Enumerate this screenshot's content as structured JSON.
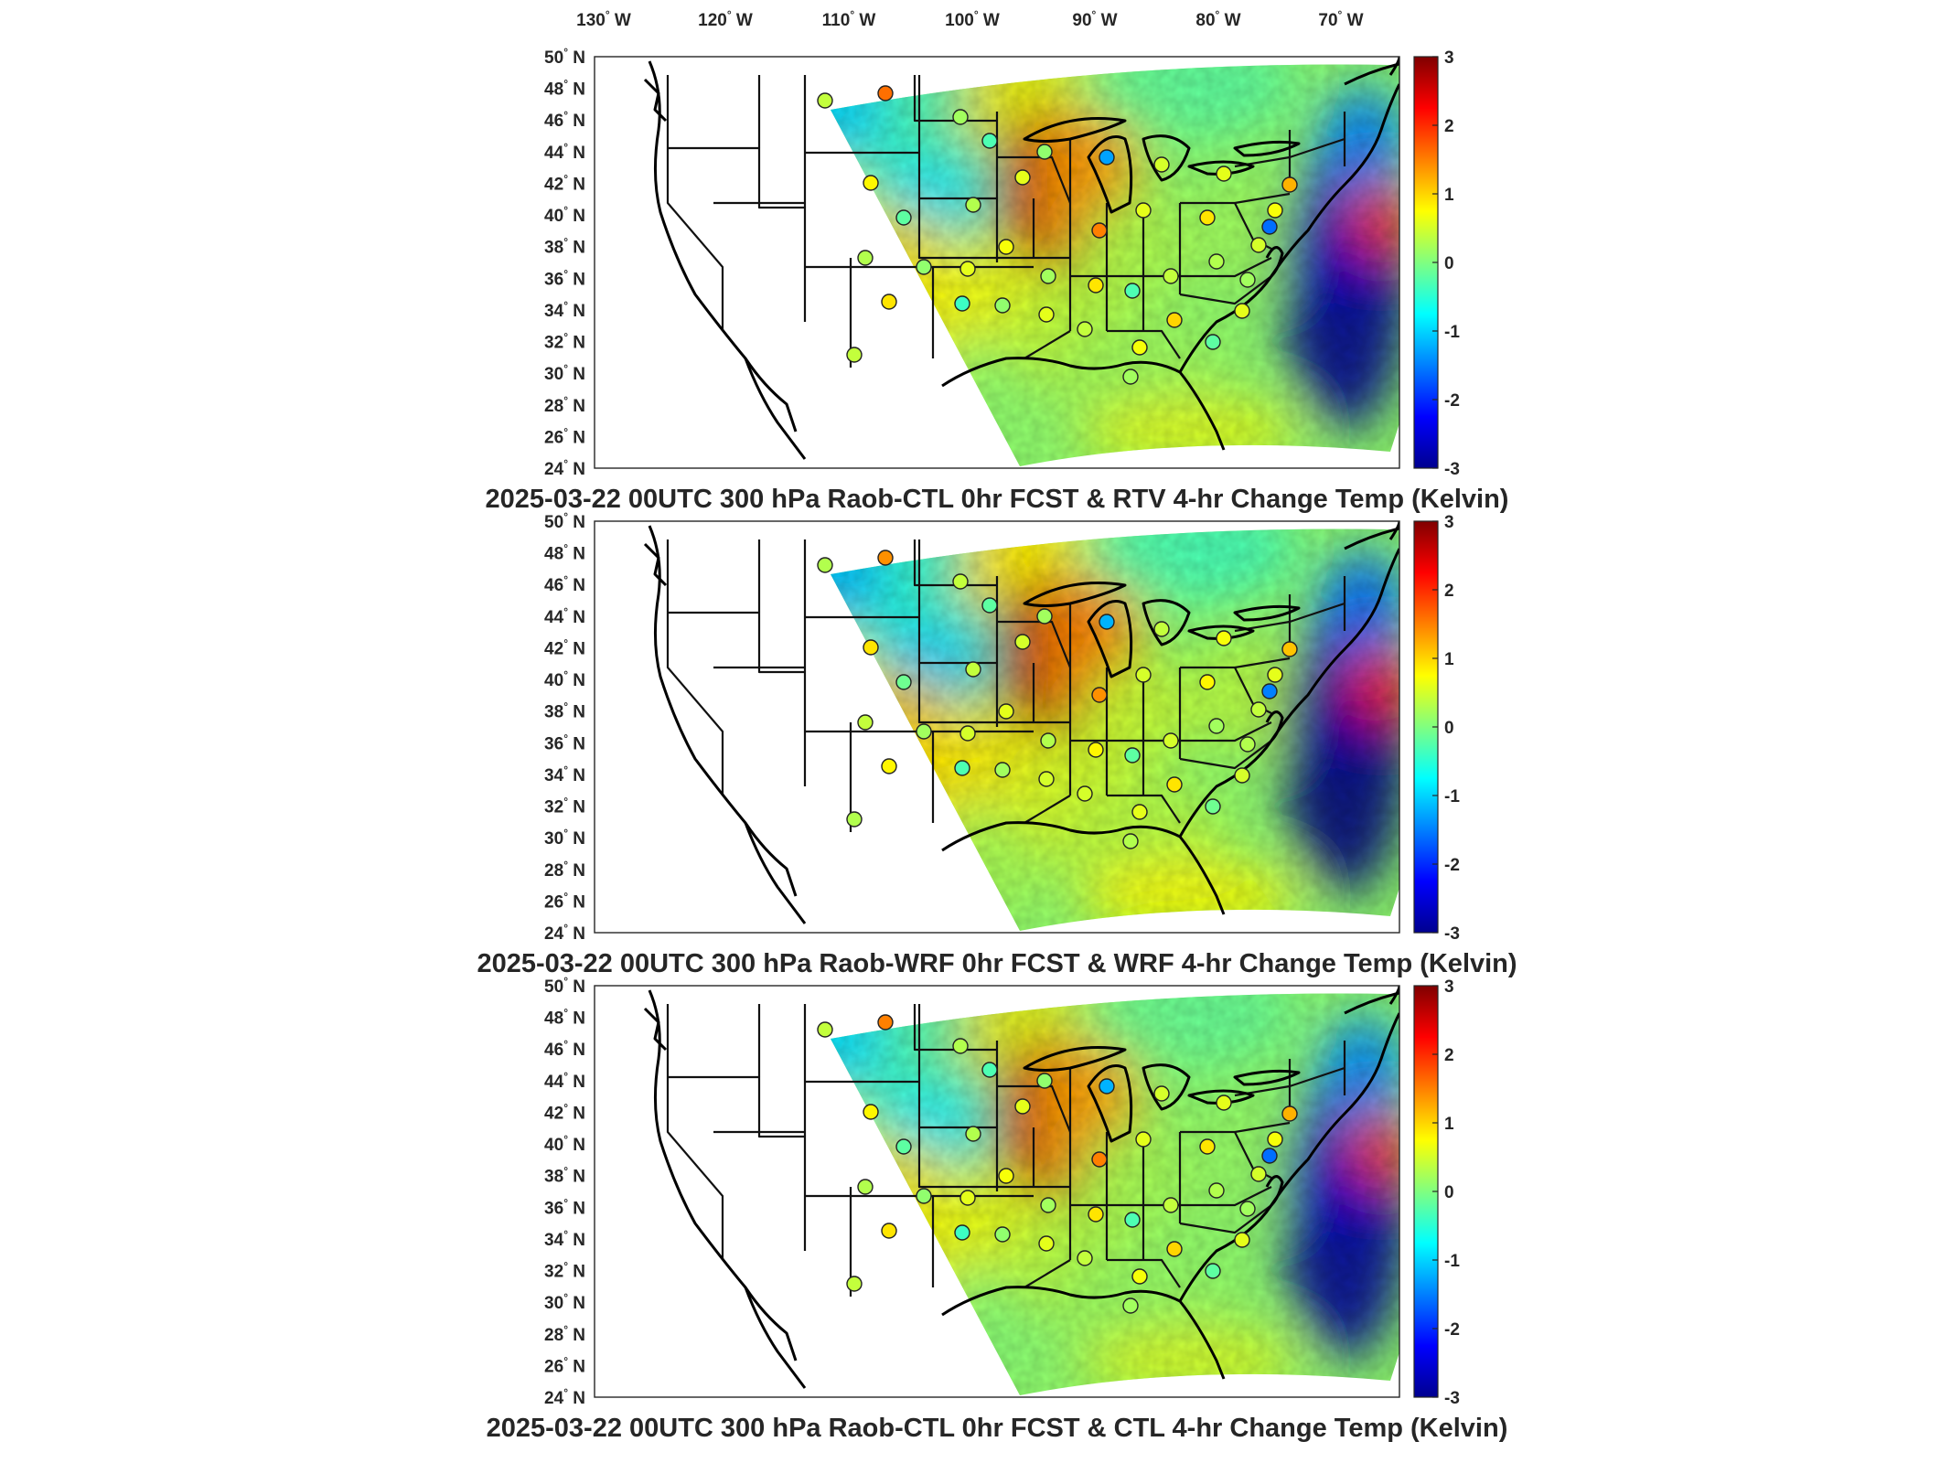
{
  "colormap": "jet",
  "colors": {
    "low": "#00008f",
    "mid": "#80ff80",
    "high": "#800000"
  },
  "lon_labels": [
    "130",
    "120",
    "110",
    "100",
    "90",
    "80",
    "70"
  ],
  "lon_suffix": "W",
  "lat_labels": [
    "50",
    "48",
    "46",
    "44",
    "42",
    "40",
    "38",
    "36",
    "34",
    "32",
    "30",
    "28",
    "26",
    "24"
  ],
  "lat_suffix": "N",
  "panels": [
    {
      "title": "2025-03-22 00UTC 300 hPa Raob-CTL 0hr FCST & RTV 4-hr Change Temp (Kelvin)",
      "colorbar": {
        "min": -3,
        "max": 3,
        "ticks": [
          "3",
          "2",
          "1",
          "0",
          "-1",
          "-2",
          "-3"
        ]
      },
      "stations": [
        0.4,
        1.6,
        0.2,
        -0.3,
        0.1,
        -1.3,
        0.5,
        0.6,
        1.2,
        0.8,
        -0.2,
        0.3,
        0.6,
        1.5,
        0.6,
        0.9,
        0.7,
        0.3,
        0.1,
        0.6,
        0.7,
        0.2,
        0.9,
        -0.3,
        0.4,
        0.3,
        0.2,
        0.5,
        -0.4,
        0.1,
        0.6,
        0.4,
        0.7,
        1.0,
        -0.2,
        0.6,
        -1.6,
        0.4,
        0.9,
        0.2
      ]
    },
    {
      "title": "2025-03-22 00UTC 300 hPa Raob-WRF 0hr FCST & WRF 4-hr Change Temp (Kelvin)",
      "colorbar": {
        "min": -3,
        "max": 3,
        "ticks": [
          "3",
          "2",
          "1",
          "0",
          "-1",
          "-2",
          "-3"
        ]
      },
      "stations": [
        0.3,
        1.4,
        0.4,
        -0.2,
        0.2,
        -1.2,
        0.4,
        0.7,
        1.1,
        0.9,
        -0.1,
        0.4,
        0.5,
        1.4,
        0.5,
        0.8,
        0.6,
        0.4,
        0.2,
        0.5,
        0.6,
        0.3,
        0.8,
        -0.2,
        0.5,
        0.2,
        0.3,
        0.4,
        -0.3,
        0.2,
        0.5,
        0.5,
        0.6,
        0.9,
        -0.1,
        0.5,
        -1.5,
        0.3,
        0.8,
        0.3
      ]
    },
    {
      "title": "2025-03-22 00UTC 300 hPa Raob-CTL 0hr FCST & CTL 4-hr Change Temp (Kelvin)",
      "colorbar": {
        "min": -3,
        "max": 3,
        "ticks": [
          "3",
          "2",
          "1",
          "0",
          "-1",
          "-2",
          "-3"
        ]
      },
      "stations": [
        0.4,
        1.5,
        0.3,
        -0.3,
        0.1,
        -1.2,
        0.5,
        0.6,
        1.2,
        0.8,
        -0.2,
        0.3,
        0.6,
        1.5,
        0.6,
        0.9,
        0.7,
        0.3,
        0.1,
        0.6,
        0.7,
        0.2,
        0.9,
        -0.3,
        0.4,
        0.3,
        0.2,
        0.5,
        -0.4,
        0.1,
        0.6,
        0.4,
        0.7,
        1.0,
        -0.2,
        0.6,
        -1.6,
        0.4,
        0.9,
        0.2
      ]
    }
  ]
}
